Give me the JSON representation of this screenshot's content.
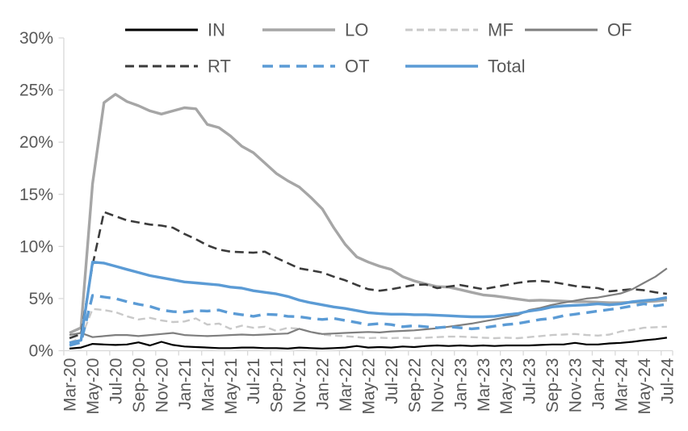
{
  "chart_data": {
    "type": "line",
    "title": "",
    "y_axis": {
      "min": 0,
      "max": 30,
      "step": 5,
      "tick_labels": [
        "0%",
        "5%",
        "10%",
        "15%",
        "20%",
        "25%",
        "30%"
      ]
    },
    "x_axis": {
      "tick_labels": [
        "Mar-20",
        "May-20",
        "Jul-20",
        "Sep-20",
        "Nov-20",
        "Jan-21",
        "Mar-21",
        "May-21",
        "Jul-21",
        "Sep-21",
        "Nov-21",
        "Jan-22",
        "Mar-22",
        "May-22",
        "Jul-22",
        "Sep-22",
        "Nov-22",
        "Jan-23",
        "Mar-23",
        "May-23",
        "Jul-23",
        "Sep-23",
        "Nov-23",
        "Jan-24",
        "Mar-24",
        "May-24",
        "Jul-24"
      ],
      "months": [
        "Mar-20",
        "Apr-20",
        "May-20",
        "Jun-20",
        "Jul-20",
        "Aug-20",
        "Sep-20",
        "Oct-20",
        "Nov-20",
        "Dec-20",
        "Jan-21",
        "Feb-21",
        "Mar-21",
        "Apr-21",
        "May-21",
        "Jun-21",
        "Jul-21",
        "Aug-21",
        "Sep-21",
        "Oct-21",
        "Nov-21",
        "Dec-21",
        "Jan-22",
        "Feb-22",
        "Mar-22",
        "Apr-22",
        "May-22",
        "Jun-22",
        "Jul-22",
        "Aug-22",
        "Sep-22",
        "Oct-22",
        "Nov-22",
        "Dec-22",
        "Jan-23",
        "Feb-23",
        "Mar-23",
        "Apr-23",
        "May-23",
        "Jun-23",
        "Jul-23",
        "Aug-23",
        "Sep-23",
        "Oct-23",
        "Nov-23",
        "Dec-23",
        "Jan-24",
        "Feb-24",
        "Mar-24",
        "Apr-24",
        "May-24",
        "Jun-24",
        "Jul-24"
      ]
    },
    "legend": {
      "rows": [
        [
          "IN",
          "LO",
          "MF",
          "OF"
        ],
        [
          "RT",
          "OT",
          "Total"
        ]
      ]
    },
    "colors": {
      "blue": "#5b9bd5",
      "gray": "#a6a6a6",
      "light_gray": "#c9c9c9",
      "dark_gray": "#7f7f7f",
      "near_black": "#3b3b3b",
      "black": "#000000",
      "axis_line": "#d9d9d9",
      "tick_text": "#595959"
    },
    "grid": "off",
    "legend_position": "top",
    "series": [
      {
        "name": "IN",
        "color": "#000000",
        "style": "solid",
        "width": 2.2,
        "values": [
          0.2,
          0.3,
          0.65,
          0.6,
          0.55,
          0.6,
          0.8,
          0.5,
          0.85,
          0.55,
          0.4,
          0.35,
          0.3,
          0.25,
          0.25,
          0.3,
          0.3,
          0.25,
          0.25,
          0.2,
          0.3,
          0.25,
          0.2,
          0.25,
          0.3,
          0.45,
          0.3,
          0.35,
          0.3,
          0.4,
          0.35,
          0.45,
          0.5,
          0.45,
          0.5,
          0.45,
          0.5,
          0.45,
          0.5,
          0.5,
          0.5,
          0.55,
          0.6,
          0.6,
          0.75,
          0.6,
          0.6,
          0.7,
          0.75,
          0.85,
          1.0,
          1.1,
          1.25
        ]
      },
      {
        "name": "LO",
        "color": "#a6a6a6",
        "style": "solid",
        "width": 3.4,
        "values": [
          1.7,
          2.2,
          16.0,
          23.8,
          24.6,
          23.9,
          23.5,
          23.0,
          22.7,
          23.0,
          23.3,
          23.2,
          21.7,
          21.4,
          20.6,
          19.6,
          19.0,
          18.0,
          17.0,
          16.3,
          15.7,
          14.7,
          13.6,
          11.8,
          10.2,
          9.0,
          8.5,
          8.1,
          7.8,
          7.1,
          6.7,
          6.4,
          6.15,
          6.1,
          5.85,
          5.6,
          5.35,
          5.25,
          5.1,
          4.95,
          4.8,
          4.85,
          4.8,
          4.75,
          4.7,
          4.7,
          4.65,
          4.6,
          4.6,
          4.65,
          4.7,
          4.75,
          4.85
        ]
      },
      {
        "name": "MF",
        "color": "#c9c9c9",
        "style": "dashed",
        "dash": "9 5",
        "width": 2.4,
        "values": [
          0.8,
          1.2,
          4.0,
          3.9,
          3.7,
          3.3,
          3.0,
          3.15,
          2.9,
          2.75,
          2.8,
          3.1,
          2.5,
          2.6,
          2.1,
          2.4,
          2.2,
          2.3,
          1.9,
          2.2,
          2.1,
          1.8,
          1.55,
          1.45,
          1.4,
          1.3,
          1.2,
          1.25,
          1.2,
          1.25,
          1.2,
          1.25,
          1.3,
          1.35,
          1.35,
          1.3,
          1.25,
          1.2,
          1.25,
          1.2,
          1.3,
          1.4,
          1.5,
          1.55,
          1.6,
          1.5,
          1.45,
          1.55,
          1.85,
          2.0,
          2.2,
          2.25,
          2.3
        ]
      },
      {
        "name": "OF",
        "color": "#7f7f7f",
        "style": "solid",
        "width": 2.2,
        "values": [
          1.5,
          1.7,
          1.3,
          1.4,
          1.5,
          1.5,
          1.4,
          1.5,
          1.6,
          1.7,
          1.5,
          1.45,
          1.4,
          1.45,
          1.5,
          1.55,
          1.5,
          1.55,
          1.6,
          1.65,
          2.1,
          1.8,
          1.6,
          1.65,
          1.7,
          1.75,
          1.8,
          1.75,
          1.85,
          1.9,
          1.95,
          2.05,
          2.15,
          2.3,
          2.45,
          2.6,
          2.8,
          3.0,
          3.2,
          3.4,
          3.9,
          4.1,
          4.4,
          4.6,
          4.8,
          5.0,
          5.1,
          5.3,
          5.5,
          5.9,
          6.5,
          7.1,
          7.9
        ]
      },
      {
        "name": "RT",
        "color": "#3b3b3b",
        "style": "dashed",
        "dash": "11 6",
        "width": 2.6,
        "values": [
          1.2,
          1.6,
          8.2,
          13.3,
          12.9,
          12.5,
          12.3,
          12.1,
          12.0,
          11.8,
          11.2,
          10.7,
          10.1,
          9.7,
          9.5,
          9.45,
          9.4,
          9.5,
          8.9,
          8.4,
          7.9,
          7.7,
          7.5,
          7.1,
          6.75,
          6.3,
          5.9,
          5.75,
          5.9,
          6.1,
          6.3,
          6.35,
          6.0,
          6.15,
          6.3,
          6.1,
          5.9,
          6.1,
          6.3,
          6.5,
          6.65,
          6.7,
          6.6,
          6.4,
          6.2,
          6.1,
          6.0,
          5.7,
          5.8,
          5.9,
          5.8,
          5.6,
          5.45
        ]
      },
      {
        "name": "OT",
        "color": "#5b9bd5",
        "style": "dashed",
        "dash": "13 8",
        "width": 3.4,
        "values": [
          0.5,
          0.8,
          5.3,
          5.15,
          5.0,
          4.7,
          4.45,
          4.25,
          3.9,
          3.75,
          3.7,
          3.85,
          3.8,
          3.9,
          3.6,
          3.45,
          3.3,
          3.5,
          3.45,
          3.3,
          3.25,
          3.1,
          3.0,
          3.1,
          2.9,
          2.7,
          2.5,
          2.6,
          2.5,
          2.3,
          2.4,
          2.3,
          2.2,
          2.3,
          2.2,
          2.1,
          2.2,
          2.35,
          2.5,
          2.6,
          2.8,
          3.0,
          3.1,
          3.35,
          3.5,
          3.65,
          3.8,
          3.95,
          4.1,
          4.3,
          4.5,
          4.3,
          4.45
        ]
      },
      {
        "name": "Total",
        "color": "#5b9bd5",
        "style": "solid",
        "width": 3.4,
        "values": [
          0.75,
          1.0,
          8.5,
          8.4,
          8.1,
          7.8,
          7.5,
          7.2,
          7.0,
          6.8,
          6.6,
          6.5,
          6.4,
          6.3,
          6.1,
          6.0,
          5.75,
          5.6,
          5.45,
          5.2,
          4.85,
          4.6,
          4.4,
          4.2,
          4.05,
          3.85,
          3.65,
          3.55,
          3.5,
          3.5,
          3.45,
          3.45,
          3.4,
          3.35,
          3.3,
          3.25,
          3.25,
          3.3,
          3.45,
          3.55,
          3.8,
          3.95,
          4.2,
          4.3,
          4.35,
          4.4,
          4.5,
          4.4,
          4.5,
          4.7,
          4.8,
          4.9,
          5.1
        ]
      }
    ],
    "draw_order": [
      "LO",
      "MF",
      "RT",
      "OF",
      "IN",
      "OT",
      "Total"
    ]
  }
}
